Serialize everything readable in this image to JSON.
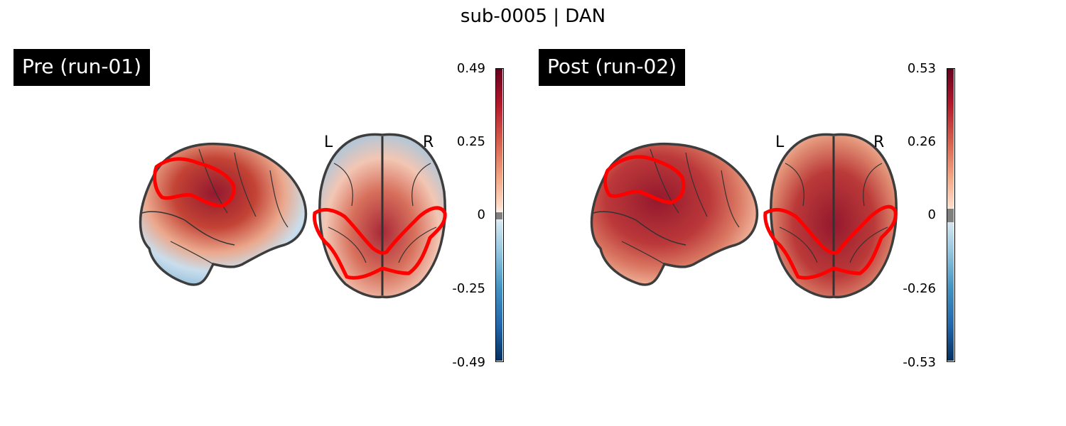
{
  "title": "sub-0005 | DAN",
  "panels": [
    {
      "label": "Pre (run-01)",
      "orientation": {
        "left": "L",
        "right": "R"
      },
      "colorbar": {
        "colormap": "RdBu_r",
        "ticks": [
          "0.49",
          "0.25",
          "0",
          "-0.25",
          "-0.49"
        ],
        "vmax": 0.49,
        "vmin": -0.49,
        "threshold_color": "#808080"
      }
    },
    {
      "label": "Post (run-02)",
      "orientation": {
        "left": "L",
        "right": "R"
      },
      "colorbar": {
        "colormap": "RdBu_r",
        "ticks": [
          "0.53",
          "0.26",
          "0",
          "-0.26",
          "-0.53"
        ],
        "vmax": 0.53,
        "vmin": -0.53,
        "threshold_color": "#808080"
      }
    }
  ],
  "colors": {
    "roi_outline": "#ff0000",
    "brain_outline": "#333333",
    "dark_red": "#67001f",
    "red": "#b2182b",
    "light_red": "#f4a582",
    "blue": "#4393c3",
    "dark_blue": "#053061"
  }
}
